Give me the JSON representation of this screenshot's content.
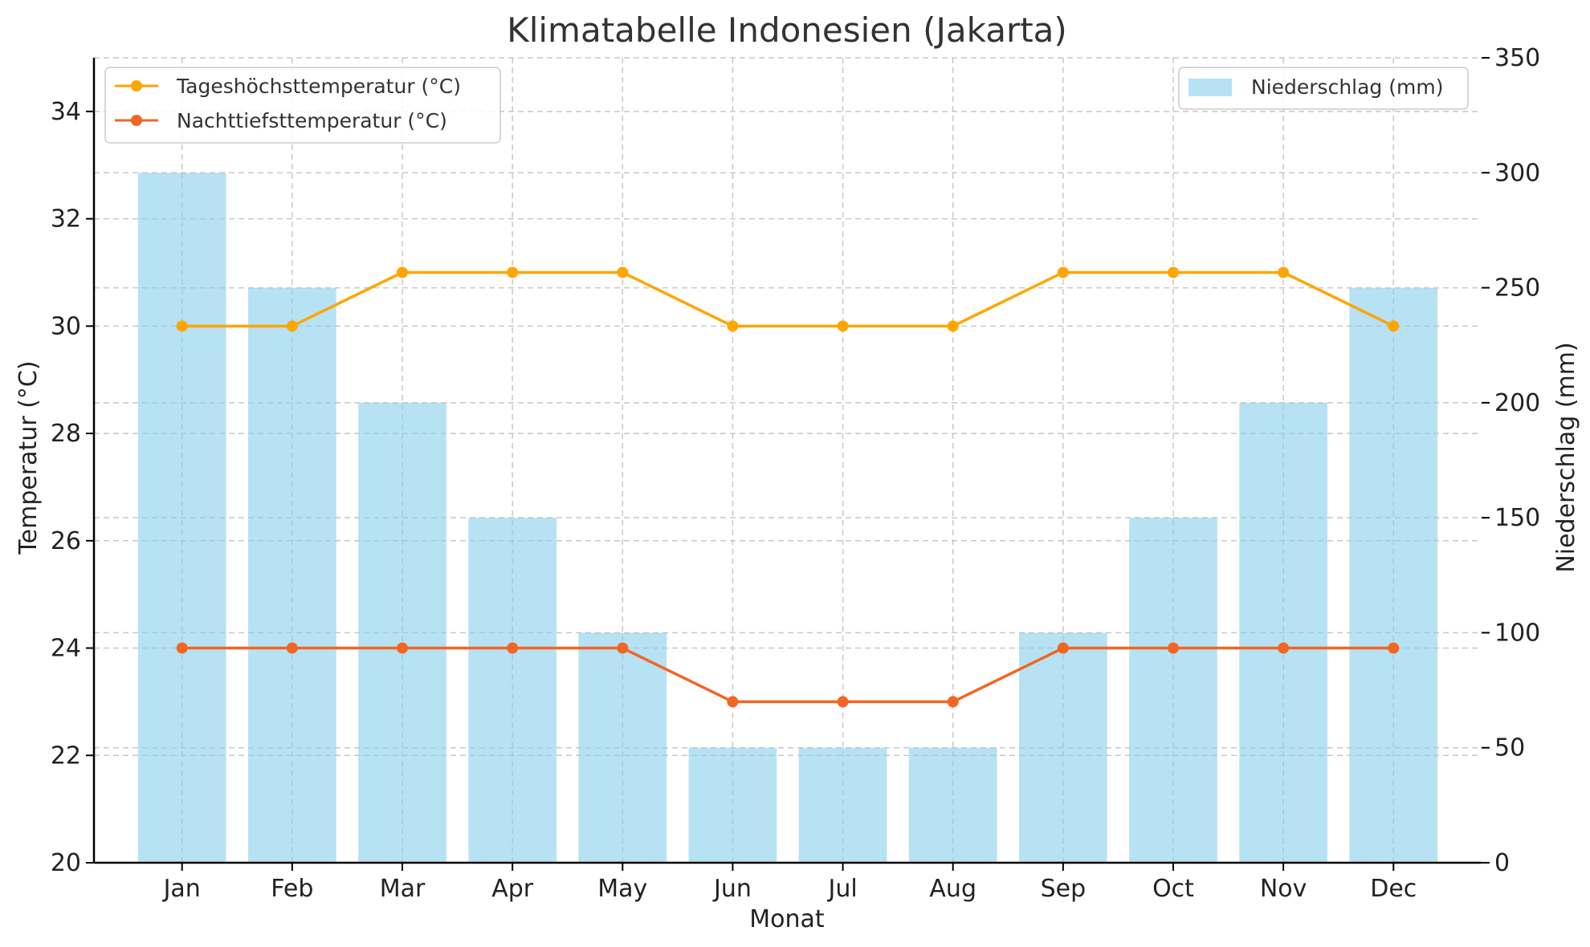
{
  "chart_data": {
    "type": "bar",
    "title": "Klimatabelle Indonesien (Jakarta)",
    "xlabel": "Monat",
    "ylabel_left": "Temperatur (°C)",
    "ylabel_right": "Niederschlag (mm)",
    "categories": [
      "Jan",
      "Feb",
      "Mar",
      "Apr",
      "May",
      "Jun",
      "Jul",
      "Aug",
      "Sep",
      "Oct",
      "Nov",
      "Dec"
    ],
    "ylim_left": [
      20,
      35
    ],
    "yticks_left": [
      20,
      22,
      24,
      26,
      28,
      30,
      32,
      34
    ],
    "ylim_right": [
      0,
      350
    ],
    "yticks_right": [
      0,
      50,
      100,
      150,
      200,
      250,
      300,
      350
    ],
    "grid": true,
    "bars": {
      "name": "Niederschlag (mm)",
      "axis": "right",
      "color": "#87CEEB",
      "values": [
        300,
        250,
        200,
        150,
        100,
        50,
        50,
        50,
        100,
        150,
        200,
        250
      ]
    },
    "series": [
      {
        "name": "Tageshöchsttemperatur (°C)",
        "axis": "left",
        "color": "#FFA500",
        "values": [
          30,
          30,
          31,
          31,
          31,
          30,
          30,
          30,
          31,
          31,
          31,
          30
        ]
      },
      {
        "name": "Nachttiefsttemperatur (°C)",
        "axis": "left",
        "color": "#F26522",
        "values": [
          24,
          24,
          24,
          24,
          24,
          23,
          23,
          23,
          24,
          24,
          24,
          24
        ]
      }
    ],
    "legend_left_placement": "upper-left",
    "legend_right_placement": "upper-right"
  }
}
